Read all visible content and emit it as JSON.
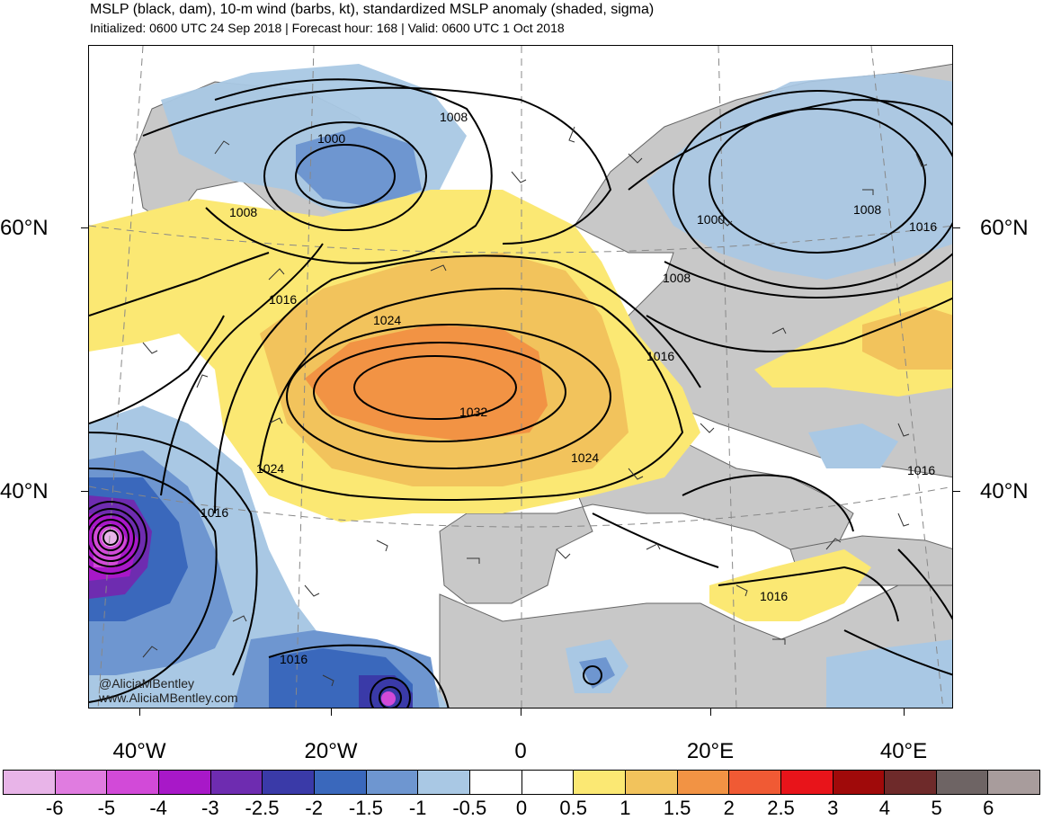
{
  "header": {
    "title": "MSLP (black, dam), 10-m wind (barbs, kt), standardized MSLP anomaly (shaded, sigma)",
    "subtitle": "Initialized: 0600 UTC 24 Sep 2018 | Forecast hour: 168 | Valid: 0600 UTC 1 Oct 2018"
  },
  "map": {
    "latitude_labels": [
      "60°N",
      "40°N"
    ],
    "longitude_labels": [
      "40°W",
      "20°W",
      "0",
      "20°E",
      "40°E"
    ],
    "isobar_labels": [
      "1000",
      "1008",
      "1008",
      "1000",
      "1008",
      "1016",
      "1008",
      "1016",
      "1024",
      "1016",
      "1032",
      "1024",
      "1024",
      "1016",
      "1016",
      "1016",
      "1016"
    ],
    "credit": [
      "@AliciaMBentley",
      "www.AliciaMBentley.com"
    ],
    "colors": {
      "land_neutral": "#c8c8c8",
      "ocean_neutral": "#ffffff",
      "isobar": "#000000"
    }
  },
  "legend": {
    "labels": [
      "-6",
      "-5",
      "-4",
      "-3",
      "-2.5",
      "-2",
      "-1.5",
      "-1",
      "-0.5",
      "0",
      "0.5",
      "1",
      "1.5",
      "2",
      "2.5",
      "3",
      "4",
      "5",
      "6"
    ],
    "colors": [
      "#e8b4e8",
      "#e07ce0",
      "#d24ad8",
      "#a818c8",
      "#6e2cb0",
      "#3a3aa8",
      "#3a68bc",
      "#6e96d0",
      "#a9c8e4",
      "#ffffff",
      "#ffffff",
      "#fbe873",
      "#f2c35c",
      "#f29344",
      "#f05a34",
      "#e8141a",
      "#a00a0a",
      "#6e2a2a",
      "#6e6464",
      "#a89c9c"
    ]
  }
}
